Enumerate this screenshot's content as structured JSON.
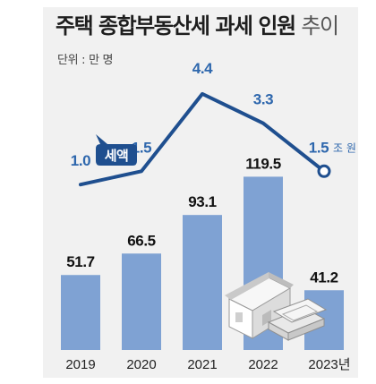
{
  "header": {
    "title_main": "주택 종합부동산세 과세 인원",
    "title_sub": "추이",
    "unit_note": "단위 : 만 명"
  },
  "colors": {
    "bar": "#7fa2d3",
    "line": "#1f4f8f",
    "value_text": "#2e67ad",
    "background_panel": "#f1f1f1"
  },
  "icons": [
    "house-illustration",
    "money-stack-illustration"
  ],
  "chart_data": {
    "type": "bar",
    "categories": [
      "2019",
      "2020",
      "2021",
      "2022",
      "2023년"
    ],
    "series": [
      {
        "name": "",
        "type": "bar",
        "values": [
          51.7,
          66.5,
          93.1,
          119.5,
          41.2
        ],
        "labels": [
          "51.7",
          "66.5",
          "93.1",
          "119.5",
          "41.2"
        ]
      },
      {
        "name": "세액",
        "type": "line",
        "values": [
          1.0,
          1.5,
          4.4,
          3.3,
          1.5
        ],
        "labels": [
          "1.0",
          "1.5",
          "4.4",
          "3.3",
          "1.5"
        ],
        "last_unit": "조 원"
      }
    ],
    "title": "주택 종합부동산세 과세 인원 추이",
    "ylabel": "단위 : 만 명",
    "ylim": [
      0,
      130
    ],
    "line_ylim": [
      0,
      5
    ],
    "grid": false,
    "legend": "inline"
  }
}
